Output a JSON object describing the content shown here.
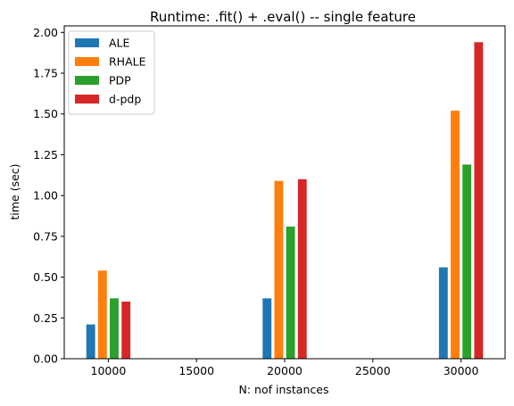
{
  "chart_data": {
    "type": "bar",
    "title": "Runtime: .fit() + .eval() -- single feature",
    "xlabel": "N: nof instances",
    "ylabel": "time (sec)",
    "x": [
      10000,
      20000,
      30000
    ],
    "x_ticks": [
      10000,
      15000,
      20000,
      25000,
      30000
    ],
    "x_tick_labels": [
      "10000",
      "15000",
      "20000",
      "25000",
      "30000"
    ],
    "xlim": [
      7500,
      32500
    ],
    "ylim": [
      0,
      2.04
    ],
    "y_ticks": [
      0,
      0.25,
      0.5,
      0.75,
      1.0,
      1.25,
      1.5,
      1.75,
      2.0
    ],
    "y_tick_labels": [
      "0.00",
      "0.25",
      "0.50",
      "0.75",
      "1.00",
      "1.25",
      "1.50",
      "1.75",
      "2.00"
    ],
    "bar_offsets": [
      -1000,
      -333,
      333,
      1000
    ],
    "bar_width": 500,
    "grid": false,
    "legend_position": "upper-left",
    "series": [
      {
        "name": "ALE",
        "color": "#1f77b4",
        "values": [
          0.21,
          0.37,
          0.56
        ]
      },
      {
        "name": "RHALE",
        "color": "#ff7f0e",
        "values": [
          0.54,
          1.09,
          1.52
        ]
      },
      {
        "name": "PDP",
        "color": "#2ca02c",
        "values": [
          0.37,
          0.81,
          1.19
        ]
      },
      {
        "name": "d-pdp",
        "color": "#d62728",
        "values": [
          0.35,
          1.1,
          1.94
        ]
      }
    ]
  }
}
